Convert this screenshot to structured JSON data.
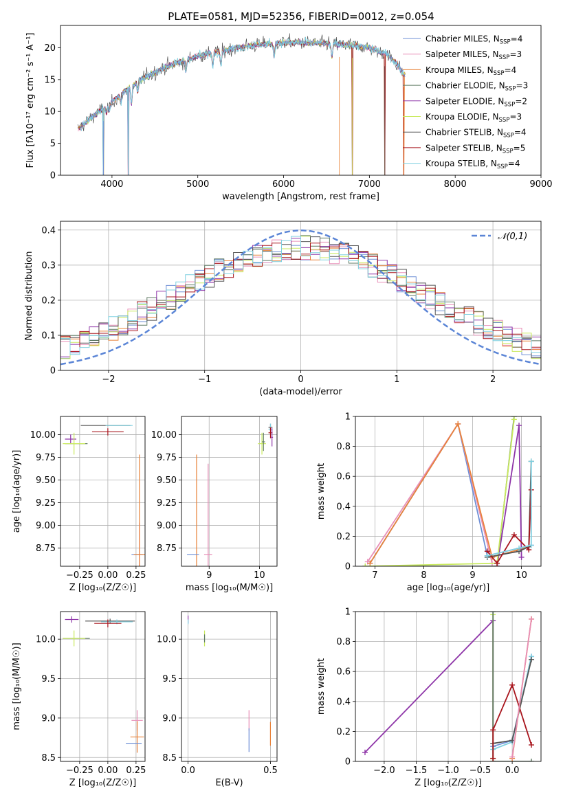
{
  "figure_title": "PLATE=0581, MJD=52356, FIBERID=0012, z=0.054",
  "series_names": [
    "Chabrier MILES",
    "Salpeter MILES",
    "Kroupa MILES",
    "Chabrier ELODIE",
    "Salpeter ELODIE",
    "Kroupa ELODIE",
    "Chabrier STELIB",
    "Salpeter STELIB",
    "Kroupa STELIB"
  ],
  "colors": {
    "Chabrier MILES": "#6e8fd6",
    "Salpeter MILES": "#e88fb8",
    "Kroupa MILES": "#e8823a",
    "Chabrier ELODIE": "#5f7a63",
    "Salpeter ELODIE": "#8e35a8",
    "Kroupa ELODIE": "#c9ea5e",
    "Chabrier STELIB": "#555555",
    "Salpeter STELIB": "#a8141c",
    "Kroupa STELIB": "#7fd0e0",
    "normal_curve": "#5b85d6"
  },
  "chart_data": [
    {
      "id": "spectrum",
      "type": "line",
      "title": "PLATE=0581, MJD=52356, FIBERID=0012, z=0.054",
      "xlabel": "wavelength [Angstrom, rest frame]",
      "ylabel": "Flux [fλ10⁻¹⁷ erg cm⁻² s⁻¹ A⁻¹]",
      "xlim": [
        3400,
        9000
      ],
      "ylim": [
        0,
        23.5
      ],
      "xticks": [
        4000,
        5000,
        6000,
        7000,
        8000,
        9000
      ],
      "yticks": [
        0,
        5,
        10,
        15,
        20
      ],
      "grid": false,
      "legend_placement": "top-right",
      "legend": [
        {
          "name": "Chabrier MILES",
          "nssp": "4"
        },
        {
          "name": "Salpeter MILES",
          "nssp": "3"
        },
        {
          "name": "Kroupa MILES",
          "nssp": "4"
        },
        {
          "name": "Chabrier ELODIE",
          "nssp": "3"
        },
        {
          "name": "Salpeter ELODIE",
          "nssp": "2"
        },
        {
          "name": "Kroupa ELODIE",
          "nssp": "3"
        },
        {
          "name": "Chabrier STELIB",
          "nssp": "4"
        },
        {
          "name": "Salpeter STELIB",
          "nssp": "5"
        },
        {
          "name": "Kroupa STELIB",
          "nssp": "4"
        }
      ],
      "continuum": [
        [
          3600,
          7.2
        ],
        [
          3800,
          9.5
        ],
        [
          4000,
          11.5
        ],
        [
          4200,
          13.8
        ],
        [
          4400,
          15.5
        ],
        [
          4600,
          16.8
        ],
        [
          4800,
          17.8
        ],
        [
          5000,
          18.7
        ],
        [
          5200,
          19.3
        ],
        [
          5400,
          19.8
        ],
        [
          5600,
          20.3
        ],
        [
          5800,
          20.6
        ],
        [
          6000,
          20.8
        ],
        [
          6200,
          20.8
        ],
        [
          6400,
          20.7
        ],
        [
          6600,
          20.6
        ],
        [
          6800,
          20.4
        ],
        [
          7000,
          20.0
        ],
        [
          7200,
          19.0
        ],
        [
          7300,
          17.8
        ],
        [
          7400,
          15.8
        ]
      ],
      "absorption_lines": [
        [
          3934,
          9.5
        ],
        [
          3968,
          8.0
        ],
        [
          4102,
          12.5
        ],
        [
          4227,
          0
        ],
        [
          4300,
          11.5
        ],
        [
          4861,
          15.5
        ],
        [
          5175,
          15.8
        ],
        [
          5270,
          16.5
        ],
        [
          5890,
          17.5
        ],
        [
          6563,
          17.5
        ]
      ],
      "spikes": [
        [
          3900,
          0
        ],
        [
          4190,
          0
        ],
        [
          6800,
          0
        ],
        [
          7180,
          0
        ],
        [
          7400,
          0
        ]
      ]
    },
    {
      "id": "residuals",
      "type": "histogram",
      "xlabel": "(data-model)/error",
      "ylabel": "Normed distribution",
      "xlim": [
        -2.5,
        2.5
      ],
      "ylim": [
        0,
        0.425
      ],
      "xticks": [
        -2,
        -1,
        0,
        1,
        2
      ],
      "yticks": [
        0.0,
        0.1,
        0.2,
        0.3,
        0.4
      ],
      "grid": true,
      "legend_placement": "top-right",
      "reference_curve": {
        "label": "𝒩(0,1)",
        "mean": 0,
        "sigma": 1
      },
      "bin_width": 0.1
    },
    {
      "id": "age_vs_Z",
      "type": "scatter",
      "xlabel": "Z [log₁₀(Z/Z☉)]",
      "ylabel": "age  [log₁₀(age/yr)]",
      "xlim": [
        -0.42,
        0.33
      ],
      "ylim": [
        8.55,
        10.2
      ],
      "xticks": [
        -0.25,
        0.0,
        0.25
      ],
      "xticklabels": [
        "−0.25",
        "0.00",
        "0.25"
      ],
      "yticks": [
        8.75,
        9.0,
        9.25,
        9.5,
        9.75,
        10.0
      ],
      "yticklabels": [
        "8.75",
        "9.00",
        "9.25",
        "9.50",
        "9.75",
        "10.00"
      ],
      "grid": true,
      "points": [
        {
          "series": "Chabrier STELIB",
          "x": -0.02,
          "y": 10.1,
          "ex": 0.22,
          "ey": 0.0
        },
        {
          "series": "Kroupa STELIB",
          "x": 0.1,
          "y": 10.1,
          "ex": 0.12,
          "ey": 0.0
        },
        {
          "series": "Salpeter STELIB",
          "x": 0.0,
          "y": 10.03,
          "ex": 0.14,
          "ey": 0.04
        },
        {
          "series": "Salpeter ELODIE",
          "x": -0.33,
          "y": 9.95,
          "ex": 0.05,
          "ey": 0.05
        },
        {
          "series": "Chabrier ELODIE",
          "x": -0.28,
          "y": 9.9,
          "ex": 0.1,
          "ey": 0.0
        },
        {
          "series": "Kroupa ELODIE",
          "x": -0.3,
          "y": 9.9,
          "ex": 0.1,
          "ey": 0.12
        },
        {
          "series": "Salpeter MILES",
          "x": 0.28,
          "y": 8.68,
          "ex": 0.0,
          "ey": 0.35
        },
        {
          "series": "Chabrier MILES",
          "x": 0.26,
          "y": 8.68,
          "ex": 0.05,
          "ey": 0.0
        },
        {
          "series": "Kroupa MILES",
          "x": 0.28,
          "y": 8.68,
          "ex": 0.05,
          "ey": 1.1
        }
      ]
    },
    {
      "id": "age_vs_mass",
      "type": "scatter",
      "xlabel": "mass [log₁₀(M/M☉)]",
      "ylabel": "",
      "xlim": [
        8.45,
        10.35
      ],
      "ylim": [
        8.55,
        10.2
      ],
      "xticks": [
        9,
        10
      ],
      "yticks": [
        8.75,
        9.0,
        9.25,
        9.5,
        9.75,
        10.0
      ],
      "yticklabels": [
        "8.75",
        "9.00",
        "9.25",
        "9.50",
        "9.75",
        "10.00"
      ],
      "grid": true,
      "points": [
        {
          "series": "Chabrier STELIB",
          "x": 10.22,
          "y": 10.08,
          "ex": 0.04,
          "ey": 0.04
        },
        {
          "series": "Kroupa STELIB",
          "x": 10.22,
          "y": 10.06,
          "ex": 0.04,
          "ey": 0.06
        },
        {
          "series": "Salpeter STELIB",
          "x": 10.22,
          "y": 10.02,
          "ex": 0.04,
          "ey": 0.06
        },
        {
          "series": "Salpeter ELODIE",
          "x": 10.25,
          "y": 9.97,
          "ex": 0.02,
          "ey": 0.1
        },
        {
          "series": "Kroupa ELODIE",
          "x": 10.05,
          "y": 9.9,
          "ex": 0.08,
          "ey": 0.12
        },
        {
          "series": "Chabrier ELODIE",
          "x": 10.08,
          "y": 9.92,
          "ex": 0.03,
          "ey": 0.1
        },
        {
          "series": "Kroupa MILES",
          "x": 8.75,
          "y": 8.68,
          "ex": 0.0,
          "ey": 1.1
        },
        {
          "series": "Salpeter MILES",
          "x": 8.98,
          "y": 8.68,
          "ex": 0.08,
          "ey": 1.0
        },
        {
          "series": "Chabrier MILES",
          "x": 8.68,
          "y": 8.68,
          "ex": 0.12,
          "ey": 0.0
        }
      ]
    },
    {
      "id": "weight_vs_age",
      "type": "line",
      "xlabel": "age  [log₁₀(age/yr)]",
      "ylabel": "mass weight",
      "xlim": [
        6.6,
        10.4
      ],
      "ylim": [
        0,
        1.0
      ],
      "xticks": [
        7,
        8,
        9,
        10
      ],
      "yticks": [
        0.0,
        0.2,
        0.4,
        0.6,
        0.8,
        1.0
      ],
      "grid": true,
      "series": [
        {
          "name": "Chabrier MILES",
          "x": [
            6.9,
            8.7,
            9.3,
            10.2
          ],
          "y": [
            0.02,
            0.95,
            0.07,
            0.14
          ]
        },
        {
          "name": "Salpeter MILES",
          "x": [
            6.85,
            8.7,
            9.4
          ],
          "y": [
            0.03,
            0.95,
            0.02
          ]
        },
        {
          "name": "Kroupa MILES",
          "x": [
            6.9,
            8.7,
            9.4,
            10.15
          ],
          "y": [
            0.02,
            0.95,
            0.06,
            0.13
          ]
        },
        {
          "name": "Chabrier ELODIE",
          "x": [
            6.8,
            9.5,
            9.85
          ],
          "y": [
            0.0,
            0.0,
            1.0
          ]
        },
        {
          "name": "Salpeter ELODIE",
          "x": [
            9.5,
            9.95,
            10.0
          ],
          "y": [
            0.0,
            0.94,
            0.06
          ]
        },
        {
          "name": "Kroupa ELODIE",
          "x": [
            6.8,
            9.5,
            9.85
          ],
          "y": [
            0.0,
            0.02,
            0.98
          ]
        },
        {
          "name": "Chabrier STELIB",
          "x": [
            9.3,
            9.95,
            10.15,
            10.2
          ],
          "y": [
            0.06,
            0.1,
            0.13,
            0.7
          ]
        },
        {
          "name": "Salpeter STELIB",
          "x": [
            9.3,
            9.5,
            9.85,
            10.15,
            10.2
          ],
          "y": [
            0.1,
            0.02,
            0.21,
            0.11,
            0.51
          ]
        },
        {
          "name": "Kroupa STELIB",
          "x": [
            9.3,
            9.95,
            10.2,
            10.2
          ],
          "y": [
            0.07,
            0.12,
            0.14,
            0.7
          ]
        }
      ]
    },
    {
      "id": "mass_vs_Z",
      "type": "scatter",
      "xlabel": "Z [log₁₀(Z/Z☉)]",
      "ylabel": "mass [log₁₀(M/M☉)]",
      "xlim": [
        -0.42,
        0.33
      ],
      "ylim": [
        8.45,
        10.35
      ],
      "xticks": [
        -0.25,
        0.0,
        0.25
      ],
      "xticklabels": [
        "−0.25",
        "0.00",
        "0.25"
      ],
      "yticks": [
        8.5,
        9.0,
        9.5,
        10.0
      ],
      "yticklabels": [
        "8.5",
        "9.0",
        "9.5",
        "10.0"
      ],
      "grid": true,
      "points": [
        {
          "series": "Salpeter ELODIE",
          "x": -0.32,
          "y": 10.25,
          "ex": 0.06,
          "ey": 0.04
        },
        {
          "series": "Chabrier STELIB",
          "x": 0.02,
          "y": 10.23,
          "ex": 0.22,
          "ey": 0.03
        },
        {
          "series": "Kroupa STELIB",
          "x": 0.08,
          "y": 10.22,
          "ex": 0.14,
          "ey": 0.03
        },
        {
          "series": "Salpeter STELIB",
          "x": 0.0,
          "y": 10.2,
          "ex": 0.12,
          "ey": 0.05
        },
        {
          "series": "Chabrier ELODIE",
          "x": -0.28,
          "y": 10.01,
          "ex": 0.12,
          "ey": 0.0
        },
        {
          "series": "Kroupa ELODIE",
          "x": -0.3,
          "y": 10.01,
          "ex": 0.1,
          "ey": 0.1
        },
        {
          "series": "Salpeter MILES",
          "x": 0.26,
          "y": 8.97,
          "ex": 0.05,
          "ey": 0.13
        },
        {
          "series": "Kroupa MILES",
          "x": 0.26,
          "y": 8.76,
          "ex": 0.06,
          "ey": 0.2
        },
        {
          "series": "Chabrier MILES",
          "x": 0.23,
          "y": 8.68,
          "ex": 0.07,
          "ey": 0.0
        }
      ]
    },
    {
      "id": "mass_vs_EBV",
      "type": "scatter",
      "xlabel": "E(B-V)",
      "ylabel": "",
      "xlim": [
        -0.04,
        0.54
      ],
      "ylim": [
        8.45,
        10.35
      ],
      "xticks": [
        0.0,
        0.5
      ],
      "xticklabels": [
        "0.0",
        "0.5"
      ],
      "yticks": [
        8.5,
        9.0,
        9.5,
        10.0
      ],
      "yticklabels": [
        "8.5",
        "9.0",
        "9.5",
        "10.0"
      ],
      "grid": true,
      "points": [
        {
          "series": "Salpeter ELODIE",
          "x": 0.0,
          "y": 10.25,
          "ex": 0.0,
          "ey": 0.05
        },
        {
          "series": "Kroupa STELIB",
          "x": 0.0,
          "y": 10.22,
          "ex": 0.0,
          "ey": 0.03
        },
        {
          "series": "Kroupa ELODIE",
          "x": 0.1,
          "y": 10.01,
          "ex": 0.0,
          "ey": 0.1
        },
        {
          "series": "Chabrier ELODIE",
          "x": 0.1,
          "y": 10.01,
          "ex": 0.0,
          "ey": 0.05
        },
        {
          "series": "Salpeter MILES",
          "x": 0.37,
          "y": 8.97,
          "ex": 0.0,
          "ey": 0.13
        },
        {
          "series": "Chabrier MILES",
          "x": 0.37,
          "y": 8.72,
          "ex": 0.0,
          "ey": 0.15
        },
        {
          "series": "Kroupa MILES",
          "x": 0.5,
          "y": 8.8,
          "ex": 0.0,
          "ey": 0.15
        }
      ]
    },
    {
      "id": "weight_vs_Z",
      "type": "line",
      "xlabel": "Z [log₁₀(Z/Z☉)]",
      "ylabel": "mass weight",
      "xlim": [
        -2.45,
        0.45
      ],
      "ylim": [
        0,
        1.0
      ],
      "xticks": [
        -2.0,
        -1.5,
        -1.0,
        -0.5,
        0.0
      ],
      "xticklabels": [
        "−2.0",
        "−1.5",
        "−1.0",
        "−0.5",
        "0.0"
      ],
      "yticks": [
        0.0,
        0.2,
        0.4,
        0.6,
        0.8,
        1.0
      ],
      "grid": true,
      "series": [
        {
          "name": "Salpeter ELODIE",
          "x": [
            -2.3,
            -0.3,
            -0.3
          ],
          "y": [
            0.06,
            0.94,
            0.0
          ]
        },
        {
          "name": "Kroupa ELODIE",
          "x": [
            -0.3,
            -0.3,
            -0.3
          ],
          "y": [
            0.0,
            0.98,
            0.02
          ]
        },
        {
          "name": "Chabrier ELODIE",
          "x": [
            -0.3,
            -0.3,
            0.3
          ],
          "y": [
            1.0,
            0.0,
            0.0
          ]
        },
        {
          "name": "Chabrier MILES",
          "x": [
            -0.3,
            0.0,
            0.3
          ],
          "y": [
            0.1,
            0.14,
            0.7
          ]
        },
        {
          "name": "Kroupa STELIB",
          "x": [
            -0.3,
            0.0,
            0.3
          ],
          "y": [
            0.08,
            0.13,
            0.7
          ]
        },
        {
          "name": "Chabrier STELIB",
          "x": [
            -0.3,
            0.0,
            0.3
          ],
          "y": [
            0.12,
            0.14,
            0.68
          ]
        },
        {
          "name": "Salpeter STELIB",
          "x": [
            -0.3,
            -0.3,
            0.0,
            0.3
          ],
          "y": [
            0.02,
            0.21,
            0.51,
            0.11
          ]
        },
        {
          "name": "Kroupa MILES",
          "x": [
            0.0,
            0.3,
            0.3
          ],
          "y": [
            0.02,
            0.95,
            0.95
          ]
        },
        {
          "name": "Salpeter MILES",
          "x": [
            0.0,
            0.3
          ],
          "y": [
            0.03,
            0.95
          ]
        }
      ]
    }
  ]
}
